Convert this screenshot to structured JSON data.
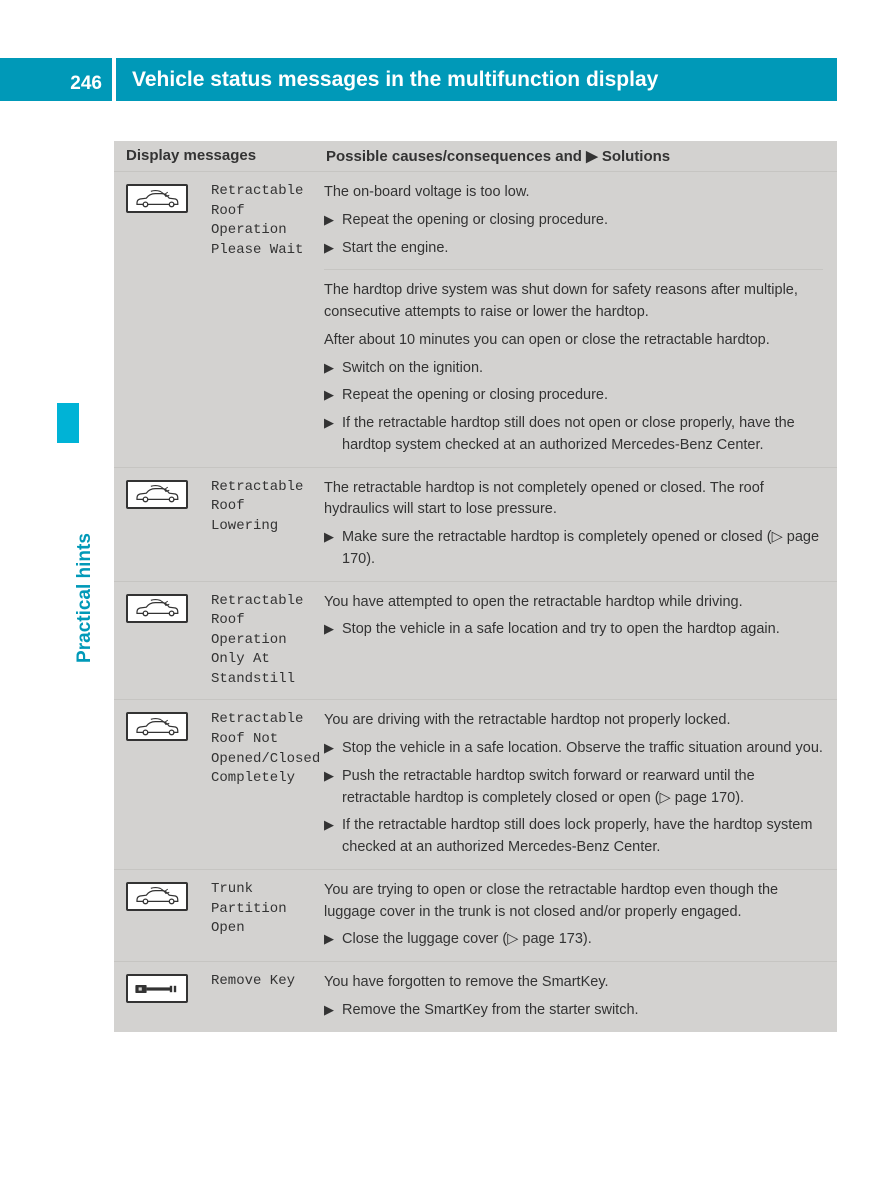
{
  "page_number": "246",
  "header_title": "Vehicle status messages in the multifunction display",
  "side_tab_label": "Practical hints",
  "table": {
    "col1_label": "Display messages",
    "col2_label": "Possible causes/consequences and ▶ Solutions",
    "rows": [
      {
        "icon": "car",
        "message": "Retractable Roof Operation Please Wait",
        "blocks": [
          {
            "intro": "The on-board voltage is too low.",
            "items": [
              "Repeat the opening or closing procedure.",
              "Start the engine."
            ]
          },
          {
            "intro": "The hardtop drive system was shut down for safety reasons after multiple, consecutive attempts to raise or lower the hardtop.",
            "extra": "After about 10 minutes you can open or close the retractable hardtop.",
            "items": [
              "Switch on the ignition.",
              "Repeat the opening or closing procedure.",
              "If the retractable hardtop still does not open or close properly, have the hardtop system checked at an authorized Mercedes-Benz Center."
            ]
          }
        ]
      },
      {
        "icon": "car",
        "message": "Retractable Roof Lowering",
        "blocks": [
          {
            "intro": "The retractable hardtop is not completely opened or closed. The roof hydraulics will start to lose pressure.",
            "items": [
              "Make sure the retractable hardtop is completely opened or closed (▷ page 170)."
            ]
          }
        ]
      },
      {
        "icon": "car",
        "message": "Retractable Roof Operation Only At Standstill",
        "blocks": [
          {
            "intro": "You have attempted to open the retractable hardtop while driving.",
            "items": [
              "Stop the vehicle in a safe location and try to open the hardtop again."
            ]
          }
        ]
      },
      {
        "icon": "car",
        "message": "Retractable Roof Not Opened/Closed Completely",
        "blocks": [
          {
            "intro": "You are driving with the retractable hardtop not properly locked.",
            "items": [
              "Stop the vehicle in a safe location. Observe the traffic situation around you.",
              "Push the retractable hardtop switch forward or rearward until the retractable hardtop is completely closed or open (▷ page 170).",
              "If the retractable hardtop still does lock properly, have the hardtop system checked at an authorized Mercedes-Benz Center."
            ]
          }
        ]
      },
      {
        "icon": "car",
        "message": "Trunk Partition Open",
        "blocks": [
          {
            "intro": "You are trying to open or close the retractable hardtop even though the luggage cover in the trunk is not closed and/or properly engaged.",
            "items": [
              "Close the luggage cover (▷ page 173)."
            ]
          }
        ]
      },
      {
        "icon": "key",
        "message": "Remove Key",
        "blocks": [
          {
            "intro": "You have forgotten to remove the SmartKey.",
            "items": [
              "Remove the SmartKey from the starter switch."
            ]
          }
        ]
      }
    ]
  }
}
